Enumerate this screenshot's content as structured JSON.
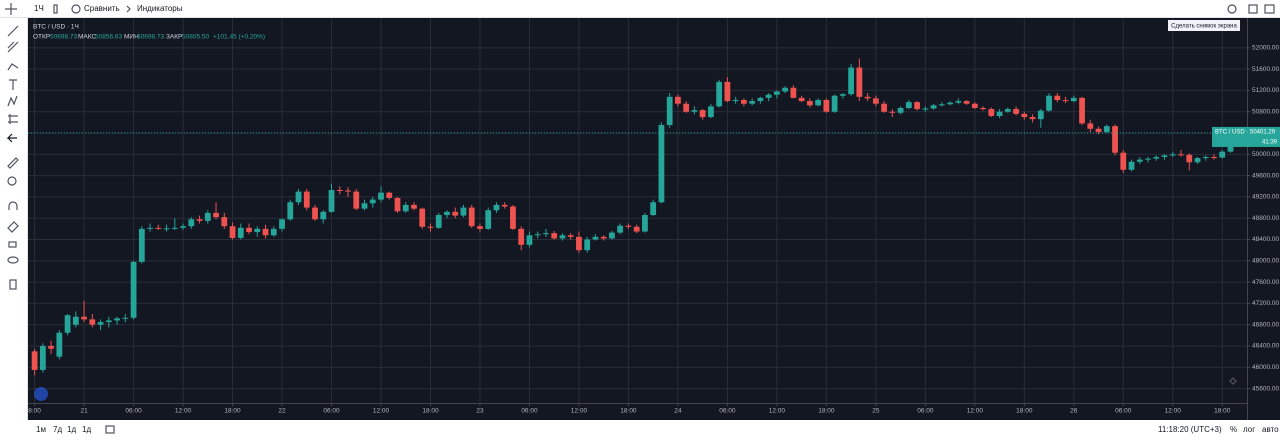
{
  "toolbar": {
    "interval": "1Ч",
    "compare": "Сравнить",
    "indicators": "Индикаторы",
    "screenshot": "Сделать снимок экрана"
  },
  "legend": {
    "symbol": "BTC / USD · 1Ч",
    "items": [
      {
        "label": "ОТКР",
        "value": "50698.73"
      },
      {
        "label": "МАКС",
        "value": "50856.63"
      },
      {
        "label": "МИН",
        "value": "50698.73"
      },
      {
        "label": "ЗАКР",
        "value": "50805.50"
      }
    ],
    "change": "+101.45 (+0.20%)"
  },
  "bottom_bar": {
    "ranges": [
      "1м",
      "7д",
      "1д",
      "1д"
    ],
    "clock": "11:18:20 (UTC+3)",
    "percent": "%",
    "log": "лог",
    "auto": "авто"
  },
  "chart_data": {
    "type": "candlestick",
    "up_color": "#26a69a",
    "down_color": "#ef5350",
    "grid": true,
    "log_scale": false,
    "xlim": [
      -0.8,
      147
    ],
    "ylim": [
      45330,
      52560
    ],
    "xticks": [
      {
        "value": 0,
        "label": "8:00"
      },
      {
        "value": 6,
        "label": "21"
      },
      {
        "value": 12,
        "label": "06:00"
      },
      {
        "value": 18,
        "label": "12:00"
      },
      {
        "value": 24,
        "label": "18:00"
      },
      {
        "value": 30,
        "label": "22"
      },
      {
        "value": 36,
        "label": "06:00"
      },
      {
        "value": 42,
        "label": "12:00"
      },
      {
        "value": 48,
        "label": "18:00"
      },
      {
        "value": 54,
        "label": "23"
      },
      {
        "value": 60,
        "label": "06:00"
      },
      {
        "value": 66,
        "label": "12:00"
      },
      {
        "value": 72,
        "label": "18:00"
      },
      {
        "value": 78,
        "label": "24"
      },
      {
        "value": 84,
        "label": "06:00"
      },
      {
        "value": 90,
        "label": "12:00"
      },
      {
        "value": 96,
        "label": "18:00"
      },
      {
        "value": 102,
        "label": "25"
      },
      {
        "value": 108,
        "label": "06:00"
      },
      {
        "value": 114,
        "label": "12:00"
      },
      {
        "value": 120,
        "label": "18:00"
      },
      {
        "value": 126,
        "label": "26"
      },
      {
        "value": 132,
        "label": "06:00"
      },
      {
        "value": 138,
        "label": "12:00"
      },
      {
        "value": 144,
        "label": "18:00"
      }
    ],
    "yticks": [
      {
        "value": 45600,
        "label": "45600.00"
      },
      {
        "value": 46000,
        "label": "46000.00"
      },
      {
        "value": 46400,
        "label": "46400.00"
      },
      {
        "value": 46800,
        "label": "46800.00"
      },
      {
        "value": 47200,
        "label": "47200.00"
      },
      {
        "value": 47600,
        "label": "47600.00"
      },
      {
        "value": 48000,
        "label": "48000.00"
      },
      {
        "value": 48400,
        "label": "48400.00"
      },
      {
        "value": 48800,
        "label": "48800.00"
      },
      {
        "value": 49200,
        "label": "49200.00"
      },
      {
        "value": 49600,
        "label": "49600.00"
      },
      {
        "value": 50000,
        "label": "50000.00"
      },
      {
        "value": 50400,
        "label": "50400.00"
      },
      {
        "value": 50800,
        "label": "50800.00"
      },
      {
        "value": 51200,
        "label": "51200.00"
      },
      {
        "value": 51600,
        "label": "51600.00"
      },
      {
        "value": 52000,
        "label": "52000.00"
      }
    ],
    "last_price": {
      "value": 50401.29,
      "label": "BTC / USD · 50401.29",
      "countdown": "41:39"
    },
    "candles": [
      [
        46300,
        46350,
        45850,
        45950
      ],
      [
        45950,
        46450,
        45900,
        46400
      ],
      [
        46400,
        46500,
        46250,
        46350
      ],
      [
        46200,
        46700,
        46150,
        46650
      ],
      [
        46650,
        47000,
        46600,
        46980
      ],
      [
        46800,
        47050,
        46750,
        46950
      ],
      [
        46950,
        47250,
        46850,
        46900
      ],
      [
        46900,
        47000,
        46750,
        46800
      ],
      [
        46800,
        46900,
        46700,
        46850
      ],
      [
        46850,
        46950,
        46750,
        46880
      ],
      [
        46880,
        46950,
        46800,
        46920
      ],
      [
        46920,
        47000,
        46850,
        46930
      ],
      [
        46930,
        48000,
        46900,
        47980
      ],
      [
        47980,
        48650,
        47950,
        48600
      ],
      [
        48600,
        48700,
        48550,
        48620
      ],
      [
        48620,
        48680,
        48580,
        48600
      ],
      [
        48600,
        48680,
        48550,
        48610
      ],
      [
        48610,
        48800,
        48580,
        48620
      ],
      [
        48620,
        48700,
        48580,
        48650
      ],
      [
        48650,
        48820,
        48600,
        48780
      ],
      [
        48780,
        48850,
        48700,
        48750
      ],
      [
        48750,
        48950,
        48700,
        48900
      ],
      [
        48900,
        49100,
        48780,
        48820
      ],
      [
        48820,
        48900,
        48600,
        48650
      ],
      [
        48650,
        48720,
        48400,
        48430
      ],
      [
        48430,
        48700,
        48400,
        48620
      ],
      [
        48620,
        48700,
        48500,
        48540
      ],
      [
        48540,
        48650,
        48450,
        48600
      ],
      [
        48600,
        48680,
        48420,
        48480
      ],
      [
        48480,
        48650,
        48450,
        48600
      ],
      [
        48600,
        48800,
        48550,
        48780
      ],
      [
        48780,
        49150,
        48750,
        49100
      ],
      [
        49100,
        49350,
        49050,
        49300
      ],
      [
        49300,
        49350,
        48950,
        49000
      ],
      [
        49000,
        49050,
        48750,
        48780
      ],
      [
        48780,
        48950,
        48700,
        48920
      ],
      [
        48920,
        49450,
        48900,
        49330
      ],
      [
        49330,
        49400,
        49250,
        49320
      ],
      [
        49320,
        49380,
        49200,
        49300
      ],
      [
        49300,
        49350,
        48950,
        48980
      ],
      [
        48980,
        49150,
        48950,
        49080
      ],
      [
        49080,
        49200,
        49000,
        49150
      ],
      [
        49150,
        49400,
        49100,
        49280
      ],
      [
        49280,
        49300,
        49150,
        49180
      ],
      [
        49180,
        49200,
        48900,
        48930
      ],
      [
        48930,
        49100,
        48900,
        49050
      ],
      [
        49050,
        49100,
        48950,
        48980
      ],
      [
        48980,
        49000,
        48600,
        48640
      ],
      [
        48640,
        48700,
        48550,
        48620
      ],
      [
        48620,
        48900,
        48600,
        48860
      ],
      [
        48860,
        48950,
        48800,
        48920
      ],
      [
        48920,
        49000,
        48800,
        48850
      ],
      [
        48850,
        49050,
        48820,
        49000
      ],
      [
        49000,
        49050,
        48620,
        48650
      ],
      [
        48650,
        48700,
        48550,
        48600
      ],
      [
        48600,
        49000,
        48580,
        48950
      ],
      [
        48950,
        49100,
        48900,
        49050
      ],
      [
        49050,
        49100,
        48980,
        49020
      ],
      [
        49020,
        49050,
        48580,
        48600
      ],
      [
        48600,
        48650,
        48200,
        48300
      ],
      [
        48300,
        48550,
        48250,
        48480
      ],
      [
        48480,
        48550,
        48420,
        48500
      ],
      [
        48500,
        48600,
        48450,
        48520
      ],
      [
        48520,
        48560,
        48400,
        48420
      ],
      [
        48420,
        48520,
        48380,
        48480
      ],
      [
        48480,
        48520,
        48400,
        48450
      ],
      [
        48450,
        48550,
        48150,
        48200
      ],
      [
        48200,
        48450,
        48150,
        48400
      ],
      [
        48400,
        48500,
        48380,
        48450
      ],
      [
        48450,
        48480,
        48380,
        48420
      ],
      [
        48420,
        48560,
        48400,
        48530
      ],
      [
        48530,
        48700,
        48500,
        48660
      ],
      [
        48660,
        48700,
        48600,
        48640
      ],
      [
        48640,
        48680,
        48520,
        48550
      ],
      [
        48550,
        48900,
        48530,
        48860
      ],
      [
        48860,
        49150,
        48840,
        49100
      ],
      [
        49100,
        50600,
        49080,
        50550
      ],
      [
        50550,
        51150,
        50500,
        51080
      ],
      [
        51080,
        51120,
        50900,
        50950
      ],
      [
        50950,
        51000,
        50780,
        50800
      ],
      [
        50800,
        50900,
        50750,
        50830
      ],
      [
        50830,
        50850,
        50650,
        50700
      ],
      [
        50700,
        50950,
        50680,
        50900
      ],
      [
        50900,
        51400,
        50880,
        51360
      ],
      [
        51360,
        51450,
        50980,
        51000
      ],
      [
        51000,
        51080,
        50950,
        51020
      ],
      [
        51020,
        51050,
        50900,
        50950
      ],
      [
        50950,
        51050,
        50920,
        51000
      ],
      [
        51000,
        51080,
        50950,
        51060
      ],
      [
        51060,
        51150,
        51000,
        51120
      ],
      [
        51120,
        51200,
        51050,
        51180
      ],
      [
        51180,
        51280,
        51150,
        51250
      ],
      [
        51250,
        51300,
        51050,
        51060
      ],
      [
        51060,
        51100,
        50980,
        51000
      ],
      [
        51000,
        51050,
        50880,
        50920
      ],
      [
        50920,
        51050,
        50900,
        51020
      ],
      [
        51020,
        51050,
        50780,
        50800
      ],
      [
        50800,
        51120,
        50780,
        51100
      ],
      [
        51100,
        51150,
        51050,
        51130
      ],
      [
        51130,
        51700,
        51100,
        51630
      ],
      [
        51630,
        51800,
        51000,
        51080
      ],
      [
        51080,
        51150,
        51000,
        51050
      ],
      [
        51050,
        51100,
        50900,
        50950
      ],
      [
        50950,
        51000,
        50780,
        50800
      ],
      [
        50800,
        50850,
        50700,
        50780
      ],
      [
        50780,
        50900,
        50750,
        50870
      ],
      [
        50870,
        51020,
        50850,
        50980
      ],
      [
        50980,
        51000,
        50820,
        50850
      ],
      [
        50850,
        50900,
        50800,
        50860
      ],
      [
        50860,
        50950,
        50840,
        50920
      ],
      [
        50920,
        50980,
        50900,
        50940
      ],
      [
        50940,
        51000,
        50920,
        50970
      ],
      [
        50970,
        51050,
        50940,
        51000
      ],
      [
        51000,
        51020,
        50930,
        50950
      ],
      [
        50950,
        50980,
        50850,
        50870
      ],
      [
        50870,
        50900,
        50820,
        50850
      ],
      [
        50850,
        50880,
        50700,
        50720
      ],
      [
        50720,
        50850,
        50680,
        50800
      ],
      [
        50800,
        50880,
        50780,
        50850
      ],
      [
        50850,
        50900,
        50730,
        50760
      ],
      [
        50760,
        50800,
        50650,
        50700
      ],
      [
        50700,
        50750,
        50600,
        50660
      ],
      [
        50660,
        50850,
        50500,
        50820
      ],
      [
        50820,
        51150,
        50800,
        51100
      ],
      [
        51100,
        51150,
        50980,
        51020
      ],
      [
        51020,
        51080,
        50960,
        51000
      ],
      [
        51000,
        51100,
        50980,
        51060
      ],
      [
        51060,
        51080,
        50550,
        50580
      ],
      [
        50580,
        50650,
        50420,
        50480
      ],
      [
        50480,
        50520,
        50380,
        50420
      ],
      [
        50420,
        50560,
        50400,
        50530
      ],
      [
        50530,
        50560,
        49980,
        50030
      ],
      [
        50030,
        50080,
        49650,
        49710
      ],
      [
        49710,
        49900,
        49680,
        49860
      ],
      [
        49860,
        49950,
        49820,
        49900
      ],
      [
        49900,
        49950,
        49850,
        49920
      ],
      [
        49920,
        49980,
        49880,
        49950
      ],
      [
        49950,
        50000,
        49900,
        49980
      ],
      [
        49980,
        50050,
        49950,
        50000
      ],
      [
        50000,
        50080,
        49960,
        49990
      ],
      [
        49990,
        50020,
        49700,
        49850
      ],
      [
        49850,
        49950,
        49820,
        49930
      ],
      [
        49930,
        49980,
        49880,
        49950
      ],
      [
        49950,
        50000,
        49900,
        49940
      ],
      [
        49940,
        50080,
        49920,
        50050
      ],
      [
        50050,
        50300,
        50030,
        50250
      ],
      [
        50250,
        50420,
        50200,
        50400
      ]
    ]
  }
}
